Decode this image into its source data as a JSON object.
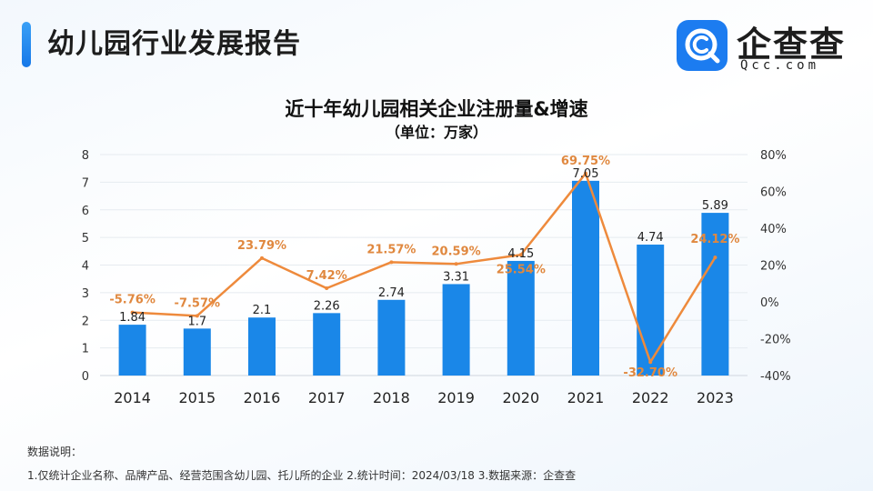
{
  "header": {
    "title": "幼儿园行业发展报告",
    "logo_text": "企查查",
    "logo_sub": "Qcc.com"
  },
  "chart_data": {
    "type": "bar",
    "title": "近十年幼儿园相关企业注册量&增速",
    "subtitle": "（单位：万家）",
    "categories": [
      "2014",
      "2015",
      "2016",
      "2017",
      "2018",
      "2019",
      "2020",
      "2021",
      "2022",
      "2023"
    ],
    "series": [
      {
        "type": "bar",
        "axis": "left",
        "values": [
          1.84,
          1.7,
          2.1,
          2.26,
          2.74,
          3.31,
          4.15,
          7.05,
          4.74,
          5.89
        ],
        "labels": [
          "1.84",
          "1.7",
          "2.1",
          "2.26",
          "2.74",
          "3.31",
          "4.15",
          "7.05",
          "4.74",
          "5.89"
        ],
        "color": "#1a87e8"
      },
      {
        "type": "line",
        "axis": "right",
        "values": [
          -5.76,
          -7.57,
          23.79,
          7.42,
          21.57,
          20.59,
          25.54,
          69.75,
          -32.7,
          24.12
        ],
        "labels": [
          "-5.76%",
          "-7.57%",
          "23.79%",
          "7.42%",
          "21.57%",
          "20.59%",
          "25.54%",
          "69.75%",
          "-32.70%",
          "24.12%"
        ],
        "color": "#ee8a3c"
      }
    ],
    "y_left": {
      "lim": [
        0,
        8
      ],
      "ticks": [
        "0",
        "1",
        "2",
        "3",
        "4",
        "5",
        "6",
        "7",
        "8"
      ]
    },
    "y_right": {
      "lim": [
        -40,
        80
      ],
      "ticks": [
        "-40%",
        "-20%",
        "0%",
        "20%",
        "40%",
        "60%",
        "80%"
      ]
    },
    "grid": true,
    "legend": "none"
  },
  "notes": {
    "title": "数据说明：",
    "line": "1.仅统计企业名称、品牌产品、经营范围含幼儿园、托儿所的企业   2.统计时间：2024/03/18    3.数据来源：企查查"
  },
  "colors": {
    "accent": "#1a87e8",
    "line": "#ee8a3c",
    "bar_label": "#222222",
    "line_label": "#e0883f"
  }
}
